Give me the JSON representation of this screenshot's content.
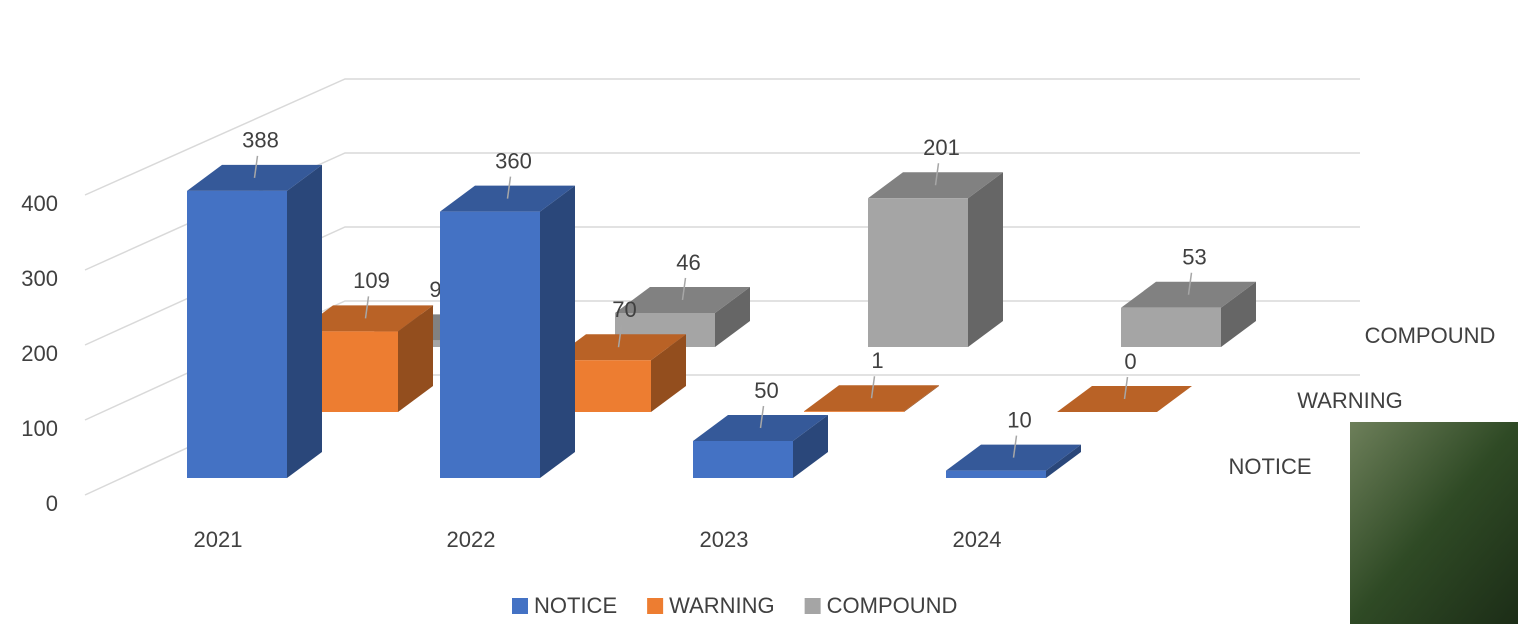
{
  "chart_data": {
    "type": "bar3d",
    "categories": [
      "2021",
      "2022",
      "2023",
      "2024"
    ],
    "series": [
      {
        "name": "NOTICE",
        "color": "#4472c4",
        "values": [
          388,
          360,
          50,
          10
        ]
      },
      {
        "name": "WARNING",
        "color": "#ed7d31",
        "values": [
          109,
          70,
          1,
          0
        ]
      },
      {
        "name": "COMPOUND",
        "color": "#a5a5a5",
        "values": [
          9,
          46,
          201,
          53
        ]
      }
    ],
    "ylim": [
      0,
      400
    ],
    "yticks": [
      0,
      100,
      200,
      300,
      400
    ],
    "grid": true
  }
}
